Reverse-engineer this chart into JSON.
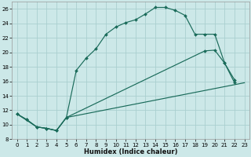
{
  "xlabel": "Humidex (Indice chaleur)",
  "bg_color": "#cce8e8",
  "line_color": "#1a6b5a",
  "grid_color": "#aacfcf",
  "grid_major_color": "#c0dede",
  "xlim": [
    -0.5,
    23.5
  ],
  "ylim": [
    8,
    27
  ],
  "xtick_vals": [
    0,
    1,
    2,
    3,
    4,
    5,
    6,
    7,
    8,
    9,
    10,
    11,
    12,
    13,
    14,
    15,
    16,
    17,
    18,
    19,
    20,
    21,
    22,
    23
  ],
  "ytick_vals": [
    8,
    10,
    12,
    14,
    16,
    18,
    20,
    22,
    24,
    26
  ],
  "curve1_x": [
    0,
    1,
    2,
    3,
    4,
    5,
    6,
    7,
    8,
    9,
    10,
    11,
    12,
    13,
    14,
    15,
    16,
    17,
    18,
    19,
    20,
    21,
    22
  ],
  "curve1_y": [
    11.5,
    10.7,
    9.7,
    9.5,
    9.2,
    11.0,
    17.5,
    19.2,
    20.5,
    22.5,
    23.5,
    24.1,
    24.5,
    25.3,
    26.2,
    26.2,
    25.8,
    25.1,
    22.5,
    22.5,
    22.5,
    18.5,
    16.2
  ],
  "curve2_x": [
    0,
    1,
    2,
    3,
    4,
    5,
    19,
    20,
    21,
    22
  ],
  "curve2_y": [
    11.5,
    10.7,
    9.7,
    9.5,
    9.2,
    11.0,
    20.2,
    20.3,
    18.5,
    15.8
  ],
  "curve3_x": [
    0,
    2,
    3,
    4,
    5,
    23
  ],
  "curve3_y": [
    11.5,
    9.7,
    9.5,
    9.2,
    11.0,
    15.8
  ]
}
